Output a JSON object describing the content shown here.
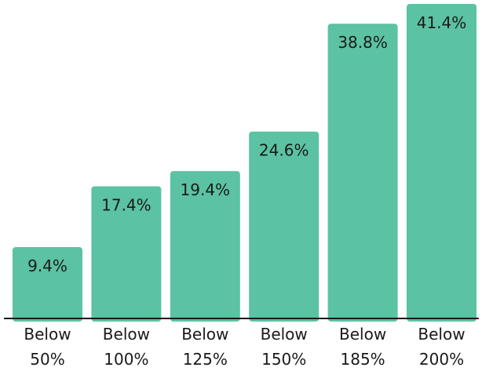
{
  "chart_data": {
    "type": "bar",
    "categories": [
      [
        "Below",
        "50%"
      ],
      [
        "Below",
        "100%"
      ],
      [
        "Below",
        "125%"
      ],
      [
        "Below",
        "150%"
      ],
      [
        "Below",
        "185%"
      ],
      [
        "Below",
        "200%"
      ]
    ],
    "values": [
      9.4,
      17.4,
      19.4,
      24.6,
      38.8,
      41.4
    ],
    "value_labels": [
      "9.4%",
      "17.4%",
      "19.4%",
      "24.6%",
      "38.8%",
      "41.4%"
    ],
    "title": "",
    "xlabel": "",
    "ylabel": "",
    "ylim": [
      0,
      41.4
    ],
    "grid": false,
    "legend": "none",
    "colors": {
      "bar": "#5bc2a3",
      "axis": "#1a1a1a"
    }
  }
}
